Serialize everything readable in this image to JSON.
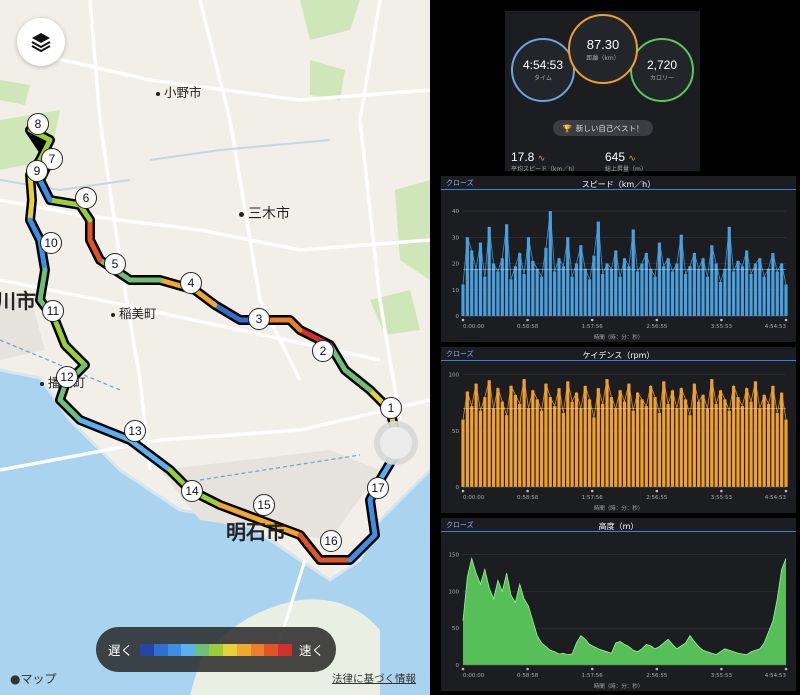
{
  "map": {
    "towns": [
      {
        "name": "小野市"
      },
      {
        "name": "三木市"
      },
      {
        "name": "稲美町"
      },
      {
        "name": "播磨町"
      }
    ],
    "city_large": "明石市",
    "city_partial": "川市",
    "km_markers": [
      "1",
      "2",
      "3",
      "4",
      "5",
      "6",
      "7",
      "8",
      "9",
      "10",
      "11",
      "12",
      "13",
      "14",
      "15",
      "16",
      "17"
    ],
    "speed_legend": {
      "slow": "遅く",
      "fast": "速く",
      "colors": [
        "#2446a8",
        "#2f6fd0",
        "#3d8fe6",
        "#5ab0f0",
        "#6cc07a",
        "#9ccd3a",
        "#e6d13a",
        "#f0a830",
        "#ec7f2a",
        "#e3532a",
        "#d3302b"
      ]
    },
    "attribution": "マップ",
    "legal": "法律に基づく情報"
  },
  "summary": {
    "time": {
      "value": "4:54:53",
      "label": "タイム",
      "color": "#6ea3e0"
    },
    "distance": {
      "value": "87.30",
      "label": "距離（km）",
      "color": "#f0a030"
    },
    "calories": {
      "value": "2,720",
      "label": "カロリー",
      "color": "#5bc85b"
    },
    "pb_label": "新しい自己ベスト！",
    "avg_speed": {
      "value": "17.8",
      "label": "平均スピード（km／h）"
    },
    "elev_gain": {
      "value": "645",
      "label": "総上昇量（m）"
    }
  },
  "panels": {
    "close": "クローズ",
    "xlabel": "時間（時：分：秒）",
    "speed": {
      "title": "スピード（km／h）",
      "color": "#4aa0dc"
    },
    "cadence": {
      "title": "ケイデンス（rpm）",
      "color": "#f0a030"
    },
    "elevation": {
      "title": "高度（m）",
      "color": "#5bc85b"
    }
  },
  "chart_data": [
    {
      "type": "area",
      "title": "スピード（km／h）",
      "xlabel": "時間（時：分：秒）",
      "x_ticks": [
        "0:00:00",
        "0:58:58",
        "1:57:56",
        "2:56:55",
        "3:55:53",
        "4:54:53"
      ],
      "y_ticks": [
        0,
        10,
        20,
        30,
        40
      ],
      "ylim": [
        0,
        45
      ],
      "avg_line": 17.8,
      "series": [
        {
          "values": [
            12,
            30,
            25,
            18,
            28,
            15,
            34,
            20,
            17,
            22,
            35,
            14,
            19,
            24,
            16,
            30,
            21,
            18,
            15,
            26,
            40,
            17,
            22,
            19,
            30,
            15,
            20,
            27,
            18,
            14,
            23,
            36,
            16,
            20,
            18,
            25,
            15,
            22,
            19,
            33,
            17,
            20,
            24,
            18,
            15,
            28,
            19,
            22,
            17,
            20,
            31,
            16,
            19,
            24,
            18,
            22,
            15,
            27,
            20,
            13,
            18,
            34,
            17,
            21,
            19,
            25,
            16,
            20,
            22,
            15,
            18,
            24,
            17,
            20,
            12
          ]
        }
      ]
    },
    {
      "type": "area",
      "title": "ケイデンス（rpm）",
      "xlabel": "時間（時：分：秒）",
      "x_ticks": [
        "0:00:00",
        "0:58:58",
        "1:57:56",
        "2:56:55",
        "3:55:53",
        "4:54:53"
      ],
      "y_ticks": [
        0,
        50,
        100
      ],
      "ylim": [
        0,
        105
      ],
      "avg_line": 70,
      "series": [
        {
          "values": [
            60,
            85,
            72,
            92,
            68,
            80,
            95,
            70,
            88,
            76,
            64,
            90,
            82,
            74,
            96,
            70,
            86,
            78,
            68,
            92,
            80,
            72,
            88,
            66,
            94,
            76,
            84,
            70,
            90,
            78,
            62,
            88,
            74,
            96,
            80,
            70,
            86,
            76,
            92,
            68,
            84,
            78,
            72,
            90,
            80,
            66,
            94,
            74,
            86,
            70,
            88,
            78,
            64,
            92,
            76,
            82,
            70,
            96,
            74,
            86,
            78,
            68,
            90,
            80,
            72,
            88,
            76,
            94,
            70,
            82,
            74,
            90,
            66,
            84,
            60
          ]
        }
      ]
    },
    {
      "type": "area",
      "title": "高度（m）",
      "xlabel": "時間（時：分：秒）",
      "x_ticks": [
        "0:00:00",
        "0:58:58",
        "1:57:56",
        "2:56:55",
        "3:55:53",
        "4:54:53"
      ],
      "y_ticks": [
        0,
        50,
        100,
        150
      ],
      "ylim": [
        0,
        170
      ],
      "series": [
        {
          "values": [
            60,
            120,
            145,
            125,
            110,
            130,
            105,
            90,
            115,
            100,
            125,
            95,
            85,
            110,
            90,
            80,
            60,
            40,
            30,
            25,
            20,
            18,
            15,
            16,
            14,
            15,
            30,
            40,
            35,
            28,
            25,
            22,
            20,
            18,
            16,
            30,
            32,
            28,
            25,
            20,
            18,
            22,
            28,
            26,
            22,
            25,
            30,
            35,
            28,
            22,
            26,
            30,
            40,
            32,
            25,
            20,
            18,
            16,
            14,
            18,
            22,
            20,
            18,
            16,
            15,
            14,
            18,
            20,
            22,
            30,
            45,
            60,
            90,
            130,
            145
          ]
        }
      ]
    }
  ]
}
